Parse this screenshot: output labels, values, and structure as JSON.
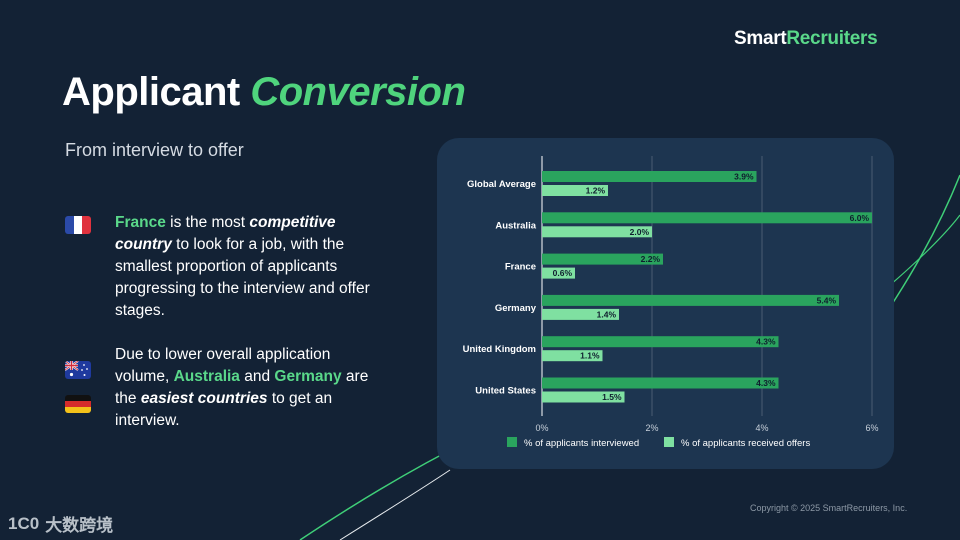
{
  "brand": {
    "part1": "Smart",
    "part2": "Recruiters"
  },
  "header": {
    "title_plain": "Applicant",
    "title_accent": "Conversion",
    "subtitle": "From interview to offer"
  },
  "notes": {
    "p1": {
      "country": "France",
      "t1": " is the most ",
      "emph1": "competitive country",
      "t2": " to look for a job, with the smallest proportion of applicants progressing to the interview and offer stages."
    },
    "p2": {
      "t1": "Due to lower overall application volume, ",
      "country1": "Australia",
      "t2": " and ",
      "country2": "Germany",
      "t3": " are the ",
      "emph1": "easiest countries",
      "t4": " to get an interview."
    }
  },
  "flags": [
    "france-flag-icon",
    "australia-flag-icon",
    "germany-flag-icon"
  ],
  "footer": {
    "copyright": "Copyright © 2025 SmartRecruiters, Inc."
  },
  "watermark": {
    "text": "大数跨境",
    "logo": "1C0"
  },
  "colors": {
    "background": "#132235",
    "card": "#1d3550",
    "accent": "#4fd47d",
    "interviewed": "#2aa45e",
    "offers": "#7fe0a1"
  },
  "chart_data": {
    "type": "bar",
    "orientation": "horizontal",
    "categories": [
      "Global Average",
      "Australia",
      "France",
      "Germany",
      "United Kingdom",
      "United States"
    ],
    "series": [
      {
        "name": "% of applicants interviewed",
        "values": [
          3.9,
          6.0,
          2.2,
          5.4,
          4.3,
          4.3
        ],
        "labels": [
          "3.9%",
          "6.0%",
          "2.2%",
          "5.4%",
          "4.3%",
          "4.3%"
        ]
      },
      {
        "name": "% of applicants received offers",
        "values": [
          1.2,
          2.0,
          0.6,
          1.4,
          1.1,
          1.5
        ],
        "labels": [
          "1.2%",
          "2.0%",
          "0.6%",
          "1.4%",
          "1.1%",
          "1.5%"
        ]
      }
    ],
    "xlim": [
      0,
      6
    ],
    "xticks": [
      0,
      2,
      4,
      6
    ],
    "xtick_labels": [
      "0%",
      "2%",
      "4%",
      "6%"
    ],
    "grid": true,
    "legend_position": "bottom"
  }
}
